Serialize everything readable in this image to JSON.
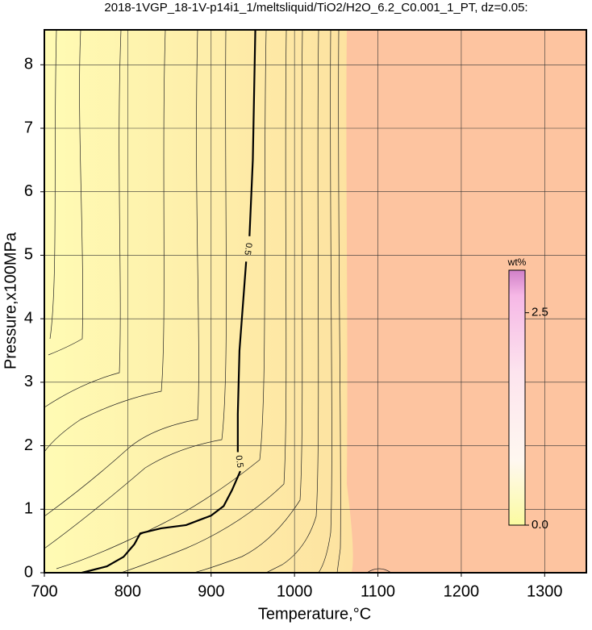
{
  "chart_data": {
    "type": "contour",
    "title": "2018-1VGP_18-1V-p14i1_1/meltsliquid/TiO2/H2O_6.2_C0.001_1_PT, dz=0.05:",
    "xlabel": "Temperature,°C",
    "ylabel": "Pressure,x100MPa",
    "xlim": [
      700,
      1350
    ],
    "ylim": [
      0,
      8.55
    ],
    "xticks": [
      700,
      800,
      900,
      1000,
      1100,
      1200,
      1300
    ],
    "yticks": [
      0,
      1,
      2,
      3,
      4,
      5,
      6,
      7,
      8
    ],
    "grid": true,
    "contours": [
      {
        "level": 0.5,
        "color": "#000000",
        "x": [
          745,
          775,
          795,
          808,
          815,
          840,
          870,
          900,
          915,
          925,
          935,
          null,
          932,
          932,
          934,
          938,
          942,
          null,
          946,
          950,
          953
        ],
        "y": [
          0,
          0.1,
          0.25,
          0.45,
          0.62,
          0.7,
          0.75,
          0.9,
          1.05,
          1.3,
          1.6,
          null,
          1.9,
          2.5,
          3.5,
          4.2,
          4.9,
          null,
          5.3,
          6.5,
          8.55
        ]
      }
    ],
    "colorbar": {
      "label": "wt%",
      "lim": [
        0,
        3.0
      ],
      "ticks": [
        {
          "value": 0,
          "label": "0.0"
        },
        2.5
      ]
    }
  }
}
